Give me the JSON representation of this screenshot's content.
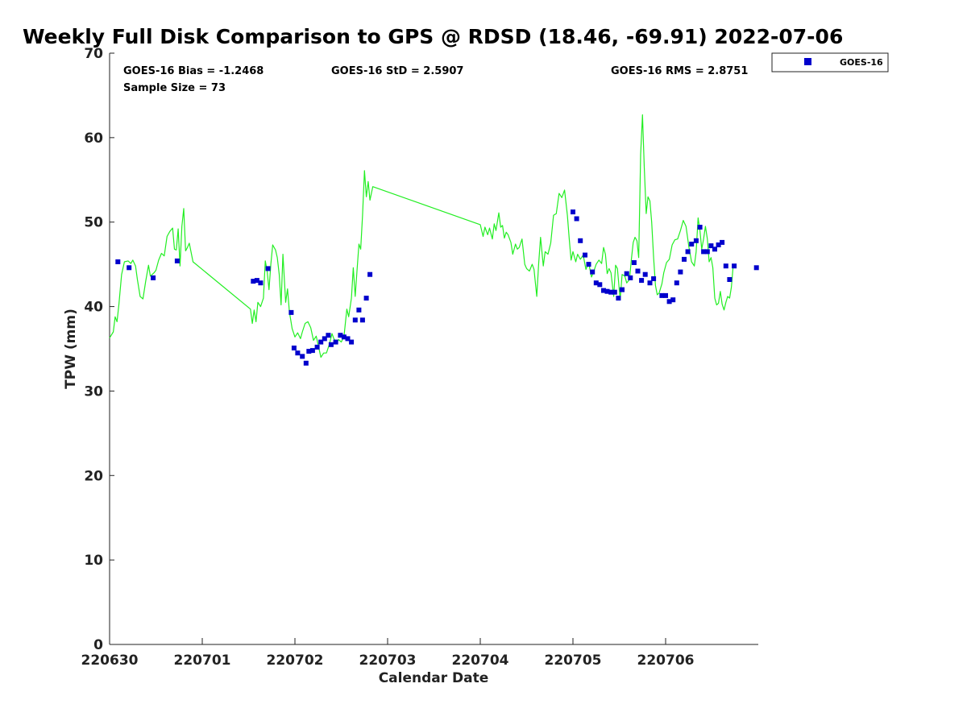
{
  "chart_data": {
    "type": "scatter",
    "title": "Weekly Full Disk Comparison to GPS @ RDSD (18.46, -69.91) 2022-07-06",
    "xlabel": "Calendar Date",
    "ylabel": "TPW (mm)",
    "xlim": [
      0,
      7
    ],
    "ylim": [
      0,
      70
    ],
    "x_ticks": [
      0,
      1,
      2,
      3,
      4,
      5,
      6
    ],
    "x_tick_labels": [
      "220630",
      "220701",
      "220702",
      "220703",
      "220704",
      "220705",
      "220706"
    ],
    "y_ticks": [
      0,
      10,
      20,
      30,
      40,
      50,
      60,
      70
    ],
    "y_tick_labels": [
      "0",
      "10",
      "20",
      "30",
      "40",
      "50",
      "60",
      "70"
    ],
    "stats": {
      "bias": "GOES-16 Bias = -1.2468",
      "std": "GOES-16 StD = 2.5907",
      "rms": "GOES-16 RMS = 2.8751",
      "sample": "Sample Size = 73"
    },
    "legend": {
      "label": "GOES-16",
      "position": "outside-top-right",
      "color": "#0000cc"
    },
    "gps_line": {
      "name": "GPS",
      "color": "#22ee22",
      "points": [
        [
          0.0,
          36.3
        ],
        [
          0.04,
          37.0
        ],
        [
          0.06,
          38.8
        ],
        [
          0.08,
          38.2
        ],
        [
          0.1,
          40.2
        ],
        [
          0.13,
          43.8
        ],
        [
          0.16,
          45.3
        ],
        [
          0.2,
          45.4
        ],
        [
          0.23,
          45.1
        ],
        [
          0.25,
          45.5
        ],
        [
          0.28,
          44.8
        ],
        [
          0.3,
          43.2
        ],
        [
          0.33,
          41.2
        ],
        [
          0.36,
          40.9
        ],
        [
          0.39,
          43.0
        ],
        [
          0.42,
          44.9
        ],
        [
          0.44,
          43.6
        ],
        [
          0.48,
          44.0
        ],
        [
          0.5,
          44.3
        ],
        [
          0.53,
          45.5
        ],
        [
          0.56,
          46.3
        ],
        [
          0.59,
          46.0
        ],
        [
          0.62,
          48.3
        ],
        [
          0.65,
          48.9
        ],
        [
          0.68,
          49.3
        ],
        [
          0.7,
          46.8
        ],
        [
          0.72,
          46.7
        ],
        [
          0.74,
          49.2
        ],
        [
          0.76,
          44.8
        ],
        [
          0.78,
          49.5
        ],
        [
          0.8,
          51.6
        ],
        [
          0.82,
          46.6
        ],
        [
          0.84,
          47.0
        ],
        [
          0.86,
          47.5
        ],
        [
          0.9,
          45.3
        ],
        [
          1.52,
          39.7
        ],
        [
          1.54,
          38.0
        ],
        [
          1.56,
          39.6
        ],
        [
          1.58,
          38.2
        ],
        [
          1.6,
          40.5
        ],
        [
          1.63,
          40.0
        ],
        [
          1.66,
          41.0
        ],
        [
          1.68,
          45.4
        ],
        [
          1.7,
          44.2
        ],
        [
          1.72,
          42.0
        ],
        [
          1.74,
          45.0
        ],
        [
          1.76,
          47.3
        ],
        [
          1.79,
          46.7
        ],
        [
          1.81,
          45.8
        ],
        [
          1.83,
          43.8
        ],
        [
          1.85,
          40.2
        ],
        [
          1.87,
          46.2
        ],
        [
          1.9,
          40.5
        ],
        [
          1.92,
          42.1
        ],
        [
          1.94,
          39.4
        ],
        [
          1.97,
          37.4
        ],
        [
          2.0,
          36.4
        ],
        [
          2.03,
          36.9
        ],
        [
          2.06,
          36.2
        ],
        [
          2.08,
          37.0
        ],
        [
          2.11,
          38.0
        ],
        [
          2.14,
          38.2
        ],
        [
          2.17,
          37.5
        ],
        [
          2.2,
          36.0
        ],
        [
          2.23,
          36.5
        ],
        [
          2.26,
          35.0
        ],
        [
          2.28,
          34.0
        ],
        [
          2.31,
          34.5
        ],
        [
          2.34,
          34.5
        ],
        [
          2.37,
          35.5
        ],
        [
          2.4,
          36.8
        ],
        [
          2.42,
          36.2
        ],
        [
          2.45,
          35.6
        ],
        [
          2.47,
          36.1
        ],
        [
          2.5,
          35.8
        ],
        [
          2.53,
          36.5
        ],
        [
          2.56,
          39.7
        ],
        [
          2.58,
          38.8
        ],
        [
          2.61,
          41.0
        ],
        [
          2.63,
          44.6
        ],
        [
          2.65,
          41.2
        ],
        [
          2.67,
          44.2
        ],
        [
          2.69,
          47.4
        ],
        [
          2.71,
          46.8
        ],
        [
          2.73,
          50.8
        ],
        [
          2.75,
          56.1
        ],
        [
          2.77,
          53.0
        ],
        [
          2.79,
          54.8
        ],
        [
          2.81,
          52.6
        ],
        [
          2.84,
          54.2
        ],
        [
          4.0,
          49.7
        ],
        [
          4.03,
          48.3
        ],
        [
          4.05,
          49.4
        ],
        [
          4.08,
          48.5
        ],
        [
          4.1,
          49.3
        ],
        [
          4.13,
          48.0
        ],
        [
          4.15,
          49.8
        ],
        [
          4.17,
          49.0
        ],
        [
          4.2,
          51.1
        ],
        [
          4.22,
          49.4
        ],
        [
          4.24,
          49.6
        ],
        [
          4.26,
          48.1
        ],
        [
          4.28,
          48.8
        ],
        [
          4.3,
          48.5
        ],
        [
          4.33,
          47.6
        ],
        [
          4.35,
          46.2
        ],
        [
          4.38,
          47.4
        ],
        [
          4.4,
          46.8
        ],
        [
          4.42,
          47.0
        ],
        [
          4.45,
          48.0
        ],
        [
          4.48,
          45.0
        ],
        [
          4.5,
          44.5
        ],
        [
          4.53,
          44.2
        ],
        [
          4.56,
          45.0
        ],
        [
          4.58,
          44.4
        ],
        [
          4.61,
          41.2
        ],
        [
          4.63,
          45.0
        ],
        [
          4.65,
          48.2
        ],
        [
          4.68,
          44.8
        ],
        [
          4.7,
          46.5
        ],
        [
          4.73,
          46.2
        ],
        [
          4.76,
          47.5
        ],
        [
          4.79,
          50.8
        ],
        [
          4.82,
          51.0
        ],
        [
          4.85,
          53.4
        ],
        [
          4.88,
          52.9
        ],
        [
          4.91,
          53.8
        ],
        [
          4.94,
          50.8
        ],
        [
          4.96,
          48.0
        ],
        [
          4.98,
          45.5
        ],
        [
          5.0,
          46.5
        ],
        [
          5.03,
          45.3
        ],
        [
          5.05,
          46.2
        ],
        [
          5.08,
          45.6
        ],
        [
          5.11,
          46.1
        ],
        [
          5.14,
          44.4
        ],
        [
          5.17,
          45.2
        ],
        [
          5.2,
          43.5
        ],
        [
          5.22,
          44.0
        ],
        [
          5.25,
          45.0
        ],
        [
          5.28,
          45.5
        ],
        [
          5.31,
          45.1
        ],
        [
          5.33,
          47.0
        ],
        [
          5.35,
          46.2
        ],
        [
          5.37,
          43.9
        ],
        [
          5.39,
          44.5
        ],
        [
          5.41,
          44.0
        ],
        [
          5.44,
          41.2
        ],
        [
          5.46,
          44.9
        ],
        [
          5.48,
          44.5
        ],
        [
          5.51,
          40.8
        ],
        [
          5.53,
          43.8
        ],
        [
          5.56,
          43.6
        ],
        [
          5.58,
          42.8
        ],
        [
          5.61,
          43.2
        ],
        [
          5.63,
          45.5
        ],
        [
          5.65,
          47.6
        ],
        [
          5.67,
          48.2
        ],
        [
          5.69,
          47.8
        ],
        [
          5.71,
          45.8
        ],
        [
          5.73,
          58.0
        ],
        [
          5.75,
          62.7
        ],
        [
          5.77,
          56.5
        ],
        [
          5.79,
          51.0
        ],
        [
          5.81,
          53.0
        ],
        [
          5.83,
          52.5
        ],
        [
          5.85,
          50.0
        ],
        [
          5.87,
          45.8
        ],
        [
          5.89,
          42.5
        ],
        [
          5.91,
          41.4
        ],
        [
          5.93,
          41.6
        ],
        [
          5.96,
          42.7
        ],
        [
          5.98,
          44.0
        ],
        [
          6.01,
          45.2
        ],
        [
          6.04,
          45.6
        ],
        [
          6.07,
          47.3
        ],
        [
          6.1,
          47.9
        ],
        [
          6.13,
          48.0
        ],
        [
          6.16,
          49.0
        ],
        [
          6.19,
          50.2
        ],
        [
          6.22,
          49.5
        ],
        [
          6.25,
          47.1
        ],
        [
          6.28,
          45.3
        ],
        [
          6.31,
          44.8
        ],
        [
          6.33,
          46.5
        ],
        [
          6.35,
          50.5
        ],
        [
          6.37,
          49.0
        ],
        [
          6.39,
          46.8
        ],
        [
          6.41,
          48.0
        ],
        [
          6.43,
          49.5
        ],
        [
          6.45,
          48.0
        ],
        [
          6.47,
          45.3
        ],
        [
          6.49,
          45.8
        ],
        [
          6.51,
          44.6
        ],
        [
          6.53,
          41.0
        ],
        [
          6.55,
          40.2
        ],
        [
          6.57,
          40.4
        ],
        [
          6.59,
          41.8
        ],
        [
          6.61,
          40.3
        ],
        [
          6.63,
          39.6
        ],
        [
          6.65,
          40.5
        ],
        [
          6.67,
          41.2
        ],
        [
          6.69,
          41.0
        ],
        [
          6.71,
          42.3
        ],
        [
          6.73,
          45.0
        ]
      ]
    },
    "series": [
      {
        "name": "GOES-16",
        "color": "#0000cc",
        "points": [
          [
            0.09,
            45.3
          ],
          [
            0.21,
            44.6
          ],
          [
            0.47,
            43.4
          ],
          [
            0.73,
            45.4
          ],
          [
            1.55,
            43.0
          ],
          [
            1.59,
            43.1
          ],
          [
            1.63,
            42.8
          ],
          [
            1.71,
            44.5
          ],
          [
            1.96,
            39.3
          ],
          [
            1.99,
            35.1
          ],
          [
            2.03,
            34.5
          ],
          [
            2.08,
            34.1
          ],
          [
            2.12,
            33.3
          ],
          [
            2.15,
            34.7
          ],
          [
            2.19,
            34.8
          ],
          [
            2.24,
            35.2
          ],
          [
            2.28,
            35.8
          ],
          [
            2.32,
            36.2
          ],
          [
            2.36,
            36.6
          ],
          [
            2.39,
            35.5
          ],
          [
            2.44,
            35.8
          ],
          [
            2.49,
            36.6
          ],
          [
            2.53,
            36.4
          ],
          [
            2.57,
            36.2
          ],
          [
            2.61,
            35.8
          ],
          [
            2.65,
            38.4
          ],
          [
            2.69,
            39.6
          ],
          [
            2.73,
            38.4
          ],
          [
            2.77,
            41.0
          ],
          [
            2.81,
            43.8
          ],
          [
            5.0,
            51.2
          ],
          [
            5.04,
            50.4
          ],
          [
            5.08,
            47.8
          ],
          [
            5.13,
            46.1
          ],
          [
            5.17,
            45.0
          ],
          [
            5.21,
            44.1
          ],
          [
            5.25,
            42.8
          ],
          [
            5.29,
            42.6
          ],
          [
            5.33,
            41.9
          ],
          [
            5.37,
            41.8
          ],
          [
            5.41,
            41.7
          ],
          [
            5.45,
            41.7
          ],
          [
            5.49,
            41.0
          ],
          [
            5.53,
            42.0
          ],
          [
            5.58,
            43.9
          ],
          [
            5.62,
            43.4
          ],
          [
            5.66,
            45.2
          ],
          [
            5.7,
            44.2
          ],
          [
            5.74,
            43.1
          ],
          [
            5.78,
            43.8
          ],
          [
            5.83,
            42.8
          ],
          [
            5.87,
            43.3
          ],
          [
            5.96,
            41.3
          ],
          [
            6.0,
            41.3
          ],
          [
            6.04,
            40.6
          ],
          [
            6.08,
            40.8
          ],
          [
            6.12,
            42.8
          ],
          [
            6.16,
            44.1
          ],
          [
            6.2,
            45.6
          ],
          [
            6.24,
            46.5
          ],
          [
            6.28,
            47.4
          ],
          [
            6.33,
            47.8
          ],
          [
            6.37,
            49.4
          ],
          [
            6.41,
            46.5
          ],
          [
            6.45,
            46.5
          ],
          [
            6.49,
            47.2
          ],
          [
            6.53,
            46.8
          ],
          [
            6.57,
            47.3
          ],
          [
            6.61,
            47.6
          ],
          [
            6.65,
            44.8
          ],
          [
            6.69,
            43.2
          ],
          [
            6.74,
            44.8
          ],
          [
            6.98,
            44.6
          ]
        ]
      }
    ]
  }
}
